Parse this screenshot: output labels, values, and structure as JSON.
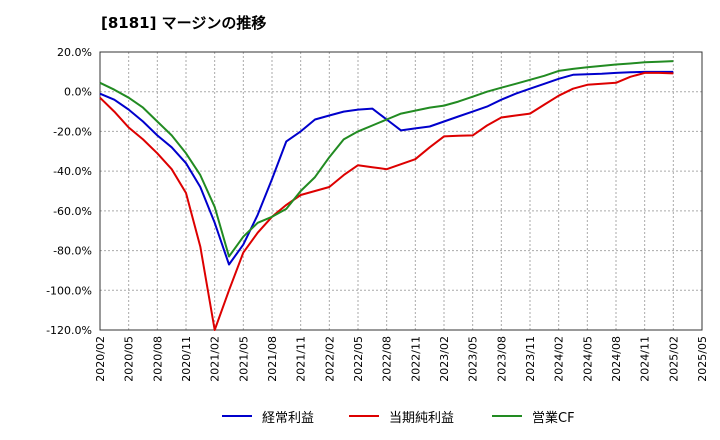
{
  "chart_data": {
    "type": "line",
    "title": "[8181]  マージンの推移",
    "xlabel": "",
    "ylabel": "",
    "ylim": [
      -120,
      20
    ],
    "y_ticks": [
      "20.0%",
      "0.0%",
      "-20.0%",
      "-40.0%",
      "-60.0%",
      "-80.0%",
      "-100.0%",
      "-120.0%"
    ],
    "x_ticks": [
      "2020/02",
      "2020/05",
      "2020/08",
      "2020/11",
      "2021/02",
      "2021/05",
      "2021/08",
      "2021/11",
      "2022/02",
      "2022/05",
      "2022/08",
      "2022/11",
      "2023/02",
      "2023/05",
      "2023/08",
      "2023/11",
      "2024/02",
      "2024/05",
      "2024/08",
      "2024/11",
      "2025/02",
      "2025/05"
    ],
    "grid": true,
    "legend_position": "bottom",
    "series": [
      {
        "name": "経常利益",
        "color": "#0000cc",
        "points": [
          [
            0,
            -1
          ],
          [
            1,
            -4
          ],
          [
            2,
            -9
          ],
          [
            3,
            -15
          ],
          [
            4,
            -22
          ],
          [
            5,
            -28
          ],
          [
            6,
            -36
          ],
          [
            7,
            -48
          ],
          [
            8,
            -66
          ],
          [
            9,
            -87
          ],
          [
            10,
            -77
          ],
          [
            11,
            -62
          ],
          [
            12,
            -44
          ],
          [
            13,
            -25
          ],
          [
            14,
            -20
          ],
          [
            15,
            -14
          ],
          [
            16,
            -12
          ],
          [
            17,
            -10
          ],
          [
            18,
            -9
          ],
          [
            19,
            -8.5
          ],
          [
            20,
            -14
          ],
          [
            21,
            -19.5
          ],
          [
            22,
            -18.5
          ],
          [
            23,
            -17.5
          ],
          [
            24,
            -15
          ],
          [
            25,
            -12.5
          ],
          [
            26,
            -10
          ],
          [
            27,
            -7.5
          ],
          [
            28,
            -4
          ],
          [
            29,
            -1
          ],
          [
            30,
            1.5
          ],
          [
            31,
            4
          ],
          [
            32,
            6.5
          ],
          [
            33,
            8.5
          ],
          [
            34,
            8.8
          ],
          [
            35,
            9
          ],
          [
            36,
            9.5
          ],
          [
            37,
            9.8
          ],
          [
            38,
            10
          ],
          [
            39,
            10
          ],
          [
            40,
            10
          ]
        ]
      },
      {
        "name": "当期純利益",
        "color": "#dd0000",
        "points": [
          [
            0,
            -3
          ],
          [
            1,
            -10
          ],
          [
            2,
            -18
          ],
          [
            3,
            -24
          ],
          [
            4,
            -31
          ],
          [
            5,
            -39
          ],
          [
            6,
            -51
          ],
          [
            7,
            -78
          ],
          [
            8,
            -120
          ],
          [
            9,
            -100
          ],
          [
            10,
            -81
          ],
          [
            11,
            -71
          ],
          [
            12,
            -63
          ],
          [
            13,
            -57
          ],
          [
            14,
            -52
          ],
          [
            15,
            -50
          ],
          [
            16,
            -48
          ],
          [
            17,
            -42
          ],
          [
            18,
            -37
          ],
          [
            19,
            -38
          ],
          [
            20,
            -39
          ],
          [
            21,
            -36.5
          ],
          [
            22,
            -34
          ],
          [
            23,
            -28
          ],
          [
            24,
            -22.5
          ],
          [
            25,
            -22.2
          ],
          [
            26,
            -22
          ],
          [
            27,
            -17
          ],
          [
            28,
            -13
          ],
          [
            29,
            -12
          ],
          [
            30,
            -11
          ],
          [
            31,
            -6.5
          ],
          [
            32,
            -2
          ],
          [
            33,
            1.5
          ],
          [
            34,
            3.5
          ],
          [
            35,
            4
          ],
          [
            36,
            4.5
          ],
          [
            37,
            7.5
          ],
          [
            38,
            9.5
          ],
          [
            39,
            9.5
          ],
          [
            40,
            9.2
          ]
        ]
      },
      {
        "name": "営業CF",
        "color": "#228b22",
        "points": [
          [
            0,
            4.5
          ],
          [
            1,
            1
          ],
          [
            2,
            -3
          ],
          [
            3,
            -8
          ],
          [
            4,
            -15
          ],
          [
            5,
            -22
          ],
          [
            6,
            -31
          ],
          [
            7,
            -42
          ],
          [
            8,
            -58
          ],
          [
            9,
            -83
          ],
          [
            10,
            -73
          ],
          [
            11,
            -66
          ],
          [
            12,
            -63
          ],
          [
            13,
            -59
          ],
          [
            14,
            -50
          ],
          [
            15,
            -43
          ],
          [
            16,
            -33
          ],
          [
            17,
            -24
          ],
          [
            18,
            -20
          ],
          [
            19,
            -17
          ],
          [
            20,
            -14
          ],
          [
            21,
            -11
          ],
          [
            22,
            -9.5
          ],
          [
            23,
            -8
          ],
          [
            24,
            -7
          ],
          [
            25,
            -5
          ],
          [
            26,
            -2.5
          ],
          [
            27,
            0
          ],
          [
            28,
            2
          ],
          [
            29,
            4
          ],
          [
            30,
            6
          ],
          [
            31,
            8
          ],
          [
            32,
            10.5
          ],
          [
            33,
            11.5
          ],
          [
            34,
            12.3
          ],
          [
            35,
            13
          ],
          [
            36,
            13.7
          ],
          [
            37,
            14.2
          ],
          [
            38,
            14.8
          ],
          [
            39,
            15.1
          ],
          [
            40,
            15.4
          ]
        ]
      }
    ]
  }
}
